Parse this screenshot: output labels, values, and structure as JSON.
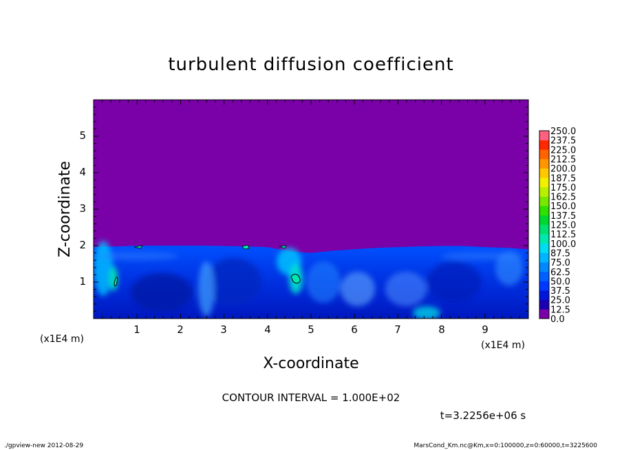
{
  "chart_data": {
    "type": "heatmap",
    "title": "turbulent diffusion coefficient",
    "xlabel": "X-coordinate",
    "ylabel": "Z-coordinate",
    "x_unit": "(x1E4 m)",
    "y_unit": "(x1E4 m)",
    "xlim": [
      0,
      10
    ],
    "ylim": [
      0,
      6
    ],
    "x_ticks": [
      "1",
      "2",
      "3",
      "4",
      "5",
      "6",
      "7",
      "8",
      "9"
    ],
    "y_ticks": [
      "1",
      "2",
      "3",
      "4",
      "5"
    ],
    "contour_interval_text": "CONTOUR INTERVAL = 1.000E+02",
    "time_text": "t=3.2256e+06 s",
    "colorbar": {
      "labels": [
        "0.0",
        "12.5",
        "25.0",
        "37.5",
        "50.0",
        "62.5",
        "75.0",
        "87.5",
        "100.0",
        "112.5",
        "125.0",
        "137.5",
        "150.0",
        "162.5",
        "175.0",
        "187.5",
        "200.0",
        "212.5",
        "225.0",
        "237.5",
        "250.0"
      ],
      "colors": [
        "#7a00a8",
        "#1a00b0",
        "#0016d8",
        "#0038ff",
        "#0060ff",
        "#0088ff",
        "#00b4ff",
        "#00dcf0",
        "#00e8b0",
        "#00e070",
        "#00d830",
        "#30e000",
        "#78e800",
        "#b8f000",
        "#f0f000",
        "#ffc800",
        "#ff9600",
        "#ff6400",
        "#ff2800",
        "#ff6080"
      ]
    },
    "background_value": 0.0,
    "boundary_layer_top_km": [
      19.6,
      19.8,
      20.0,
      20.0,
      20.0,
      20.0,
      19.9,
      19.8,
      19.6,
      18.4,
      18.0,
      18.6,
      19.0,
      19.4,
      19.6,
      19.8,
      19.9,
      19.9,
      19.6,
      19.4,
      19.0
    ]
  },
  "footer": {
    "left": "./gpview-new  2012-08-29",
    "right": "MarsCond_Km.nc@Km,x=0:100000,z=0:60000,t=3225600"
  }
}
